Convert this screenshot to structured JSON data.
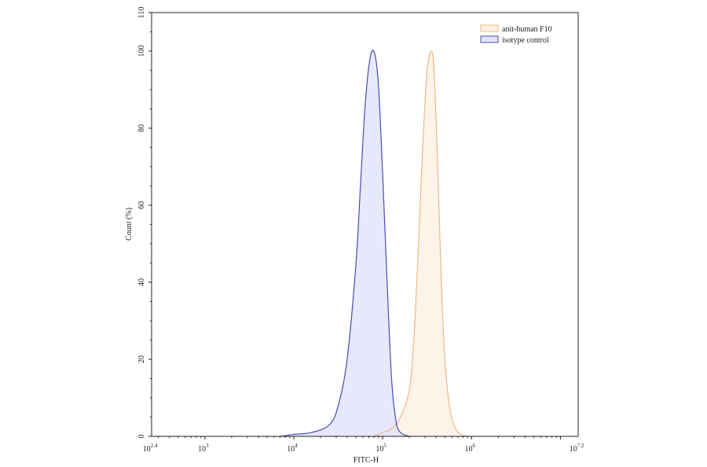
{
  "chart_data": {
    "type": "area",
    "title": "",
    "xlabel": "FITC-H",
    "ylabel": "Count (%)",
    "xscale": "log10",
    "xlim_log10": [
      2.4,
      7.2
    ],
    "ylim": [
      0,
      110
    ],
    "x_tick_labels": [
      {
        "base": "10",
        "exp": "2.4",
        "log": 2.4
      },
      {
        "base": "10",
        "exp": "3",
        "log": 3
      },
      {
        "base": "10",
        "exp": "4",
        "log": 4
      },
      {
        "base": "10",
        "exp": "5",
        "log": 5
      },
      {
        "base": "10",
        "exp": "6",
        "log": 6
      },
      {
        "base": "10",
        "exp": "7.2",
        "log": 7.2
      }
    ],
    "y_ticks": [
      0,
      20,
      40,
      60,
      80,
      100,
      110
    ],
    "legend_position": "top-right",
    "series": [
      {
        "name": "anit-human F10",
        "stroke": "#e8b98a",
        "fill": "#fdf1e4",
        "x_log10": [
          4.9,
          5.0,
          5.1,
          5.2,
          5.3,
          5.35,
          5.4,
          5.45,
          5.5,
          5.55,
          5.58,
          5.62,
          5.66,
          5.7,
          5.75,
          5.8,
          5.85,
          5.9,
          5.95
        ],
        "values": [
          0,
          1,
          2,
          5,
          12,
          25,
          48,
          75,
          95,
          100,
          94,
          70,
          40,
          20,
          8,
          3,
          1,
          0.3,
          0
        ]
      },
      {
        "name": "isotype control",
        "stroke": "#4b4bb0",
        "fill": "#e3e4fb",
        "x_log10": [
          3.85,
          4.0,
          4.2,
          4.4,
          4.5,
          4.6,
          4.7,
          4.75,
          4.8,
          4.85,
          4.9,
          4.95,
          5.0,
          5.05,
          5.1,
          5.15,
          5.2,
          5.3
        ],
        "values": [
          0,
          0.5,
          1,
          3,
          8,
          20,
          45,
          65,
          85,
          97,
          100,
          92,
          68,
          40,
          15,
          4,
          1,
          0
        ]
      }
    ]
  }
}
